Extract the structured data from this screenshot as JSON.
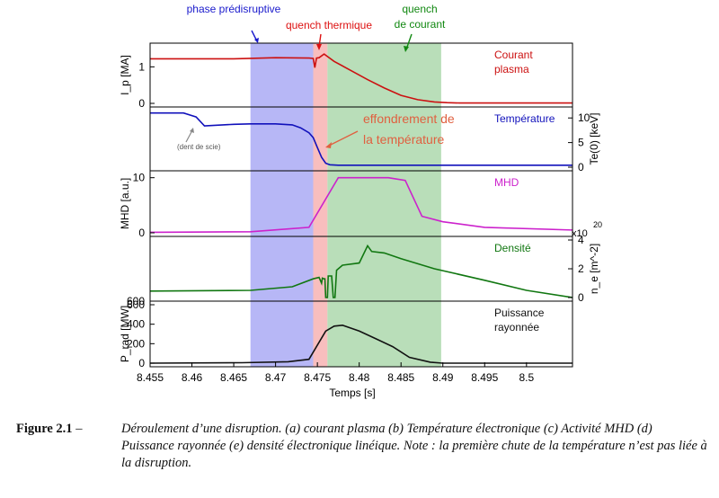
{
  "chart_data": {
    "type": "line",
    "xlabel": "Temps [s]",
    "x_ticks": [
      "8.455",
      "8.46",
      "8.465",
      "8.47",
      "8.475",
      "8.48",
      "8.485",
      "8.49",
      "8.495",
      "8.5"
    ],
    "xlim": [
      8.455,
      8.5055
    ],
    "phases": [
      {
        "name": "phase prédisruptive",
        "x0": 8.467,
        "x1": 8.4745,
        "color": "#aaaaf5"
      },
      {
        "name": "quench thermique",
        "x0": 8.4745,
        "x1": 8.4762,
        "color": "#f7b3b3"
      },
      {
        "name": "quench de courant",
        "x0": 8.4762,
        "x1": 8.4898,
        "color": "#add8ad"
      }
    ],
    "phase_labels": {
      "pre": "phase prédisruptive",
      "tq": "quench thermique",
      "cq1": "quench",
      "cq2": "de courant"
    },
    "annotations": {
      "effondrement1": "effondrement de",
      "effondrement2": "la température",
      "dent": "(dent de scie)"
    },
    "panels": [
      {
        "key": "ip",
        "series_label_lines": [
          "Courant",
          "plasma"
        ],
        "color": "#cc1111",
        "ylabel_left": "I_p [MA]",
        "left_ticks": [
          "0",
          "1"
        ],
        "right_ticks": [],
        "ylim": [
          0,
          1.55
        ],
        "x": [
          8.455,
          8.465,
          8.47,
          8.474,
          8.4745,
          8.4747,
          8.4749,
          8.4752,
          8.4758,
          8.477,
          8.479,
          8.481,
          8.483,
          8.485,
          8.487,
          8.489,
          8.4905,
          8.492,
          8.5055
        ],
        "y": [
          1.22,
          1.22,
          1.25,
          1.24,
          1.23,
          0.98,
          1.24,
          1.25,
          1.35,
          1.15,
          0.9,
          0.65,
          0.42,
          0.22,
          0.1,
          0.04,
          0.02,
          0.01,
          0.01
        ]
      },
      {
        "key": "te",
        "series_label_lines": [
          "Température"
        ],
        "color": "#1111bb",
        "ylabel_right": "Te(0) [keV]",
        "left_ticks": [],
        "right_ticks": [
          "0",
          "5",
          "10"
        ],
        "ylim": [
          0,
          11.5
        ],
        "x": [
          8.455,
          8.459,
          8.4605,
          8.4615,
          8.465,
          8.467,
          8.47,
          8.472,
          8.473,
          8.474,
          8.4745,
          8.475,
          8.4755,
          8.476,
          8.4765,
          8.4775,
          8.49,
          8.5055
        ],
        "y": [
          11.0,
          11.0,
          10.2,
          8.4,
          8.7,
          8.8,
          8.8,
          8.6,
          8.0,
          7.0,
          6.0,
          4.0,
          2.0,
          0.8,
          0.5,
          0.4,
          0.4,
          0.4
        ]
      },
      {
        "key": "mhd",
        "series_label_lines": [
          "MHD"
        ],
        "color": "#cc22cc",
        "ylabel_left": "MHD [a.u.]",
        "left_ticks": [
          "0",
          "10"
        ],
        "right_ticks": [],
        "ylim": [
          0,
          10.6
        ],
        "x": [
          8.455,
          8.467,
          8.474,
          8.4775,
          8.4835,
          8.4855,
          8.4875,
          8.49,
          8.495,
          8.5055
        ],
        "y": [
          0.1,
          0.2,
          1.0,
          10.0,
          10.0,
          9.5,
          3.0,
          2.0,
          1.0,
          0.5
        ]
      },
      {
        "key": "ne",
        "series_label_lines": [
          "Densité"
        ],
        "color": "#117711",
        "ylabel_right": "n_e [m^-2]",
        "exponent": "x10",
        "exponent_power": "20",
        "left_ticks": [
          "600"
        ],
        "right_ticks": [
          "0",
          "2",
          "4"
        ],
        "ylim": [
          0,
          4
        ],
        "x": [
          8.455,
          8.467,
          8.472,
          8.4745,
          8.4752,
          8.4755,
          8.4756,
          8.4758,
          8.4759,
          8.476,
          8.4762,
          8.4763,
          8.4767,
          8.4769,
          8.4771,
          8.4773,
          8.478,
          8.48,
          8.481,
          8.4815,
          8.483,
          8.485,
          8.489,
          8.495,
          8.5,
          8.5055
        ],
        "y": [
          0.45,
          0.5,
          0.75,
          1.3,
          1.4,
          1.0,
          1.35,
          1.3,
          1.3,
          0.0,
          0.0,
          1.5,
          1.5,
          0.0,
          0.0,
          1.9,
          2.25,
          2.4,
          3.6,
          3.2,
          3.1,
          2.7,
          2.0,
          1.2,
          0.5,
          0.0
        ]
      },
      {
        "key": "prad",
        "series_label_lines": [
          "Puissance",
          "rayonnée"
        ],
        "color": "#111111",
        "ylabel_left": "P_rad [MW]",
        "left_ticks": [
          "0",
          "200",
          "400",
          "600"
        ],
        "right_ticks": [],
        "ylim": [
          0,
          600
        ],
        "x": [
          8.455,
          8.466,
          8.4715,
          8.474,
          8.476,
          8.477,
          8.478,
          8.48,
          8.482,
          8.484,
          8.486,
          8.4885,
          8.49,
          8.5055
        ],
        "y": [
          0,
          5,
          15,
          40,
          330,
          380,
          390,
          330,
          250,
          170,
          60,
          10,
          0,
          0
        ]
      }
    ]
  },
  "caption": {
    "label": "Figure 2.1",
    "dash": "–",
    "text": "Déroulement d’une disruption. (a) courant plasma (b) Température électronique (c) Activité MHD (d) Puissance rayonnée (e) densité électronique linéique. Note : la première chute de la température n’est pas liée à la disruption."
  }
}
